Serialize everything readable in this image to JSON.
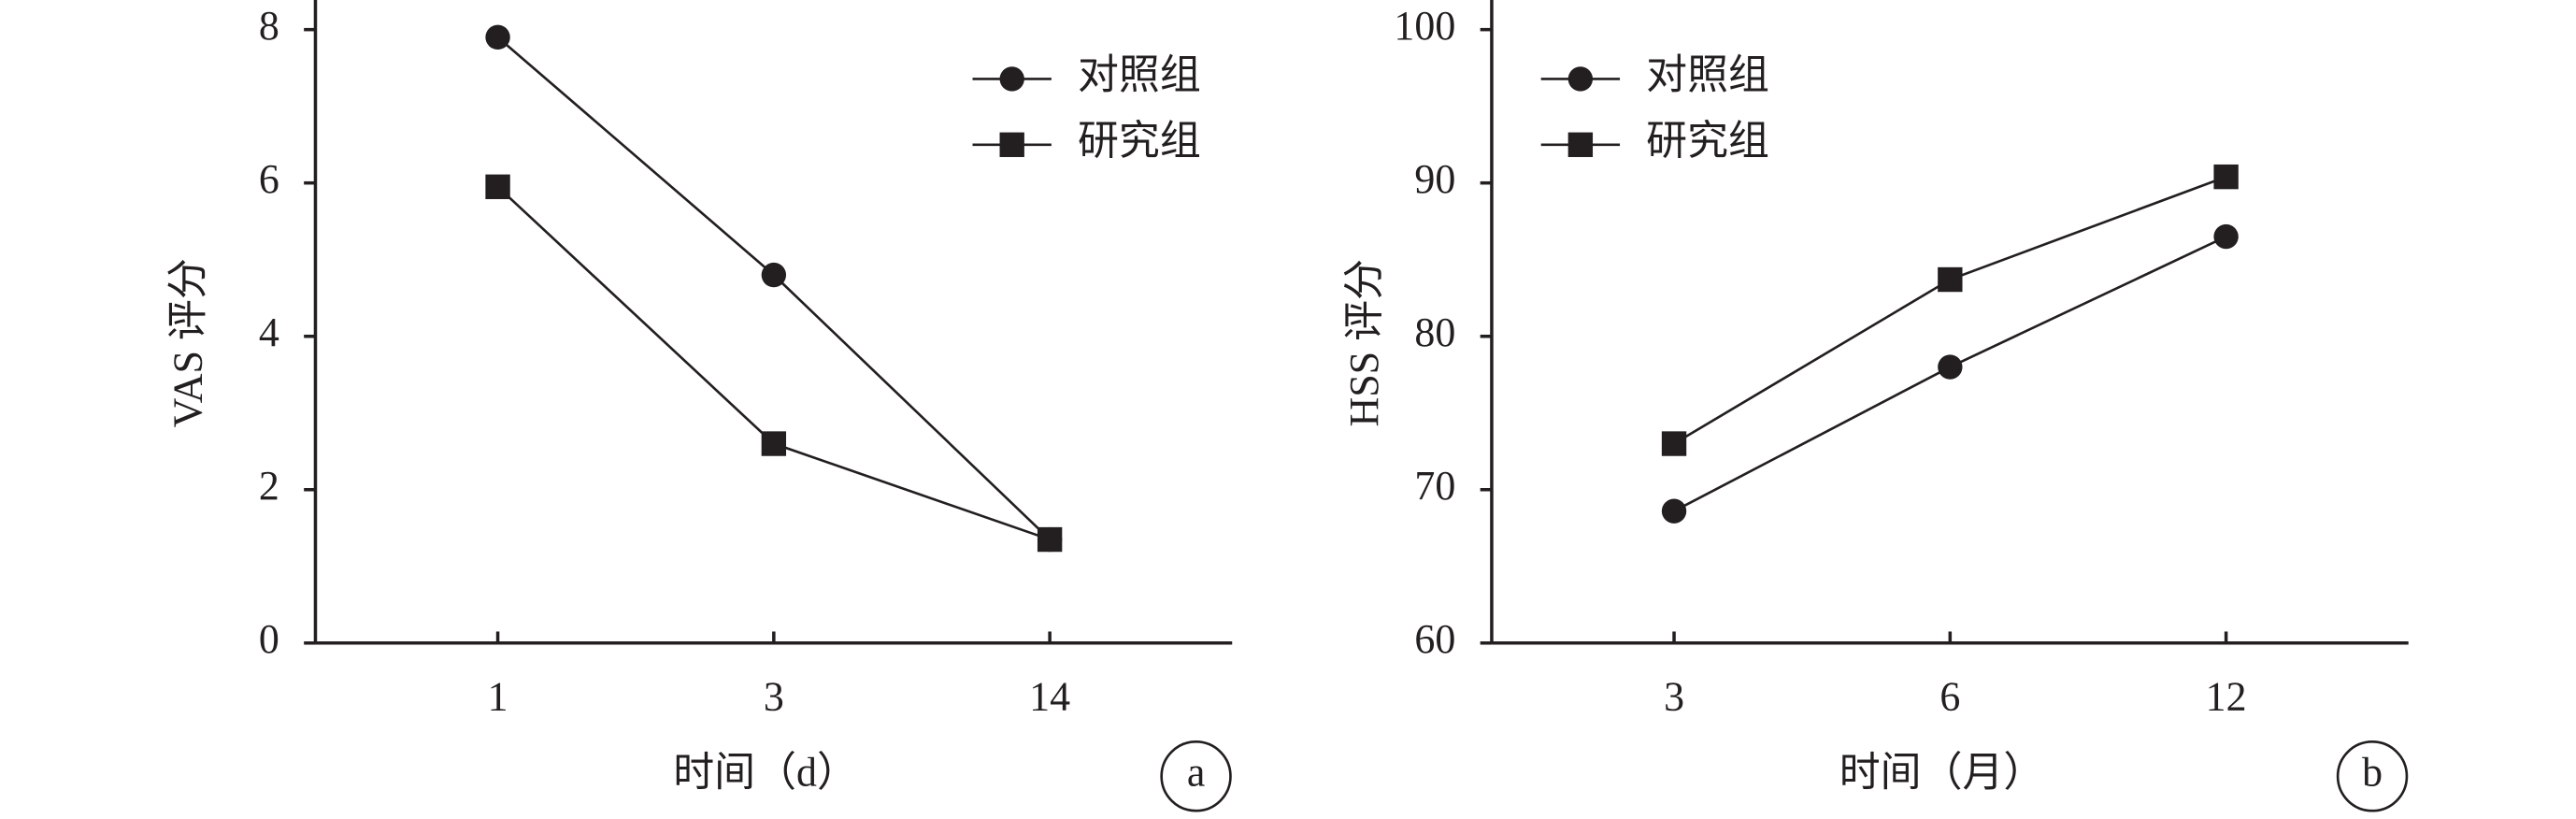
{
  "chart_data": [
    {
      "type": "line",
      "panel_label": "a",
      "y_label": "VAS 评分",
      "x_label": "时间（d）",
      "categories": [
        "1",
        "3",
        "14"
      ],
      "series": [
        {
          "name": "对照组",
          "color": "#231f20",
          "marker": "circle",
          "values": [
            7.9,
            4.8,
            1.35
          ]
        },
        {
          "name": "研究组",
          "color": "#231f20",
          "marker": "square",
          "values": [
            5.95,
            2.6,
            1.35
          ]
        }
      ],
      "ylim": [
        0,
        8
      ],
      "yticks": [
        0,
        2,
        4,
        6,
        8
      ],
      "legend": "upper right"
    },
    {
      "type": "line",
      "panel_label": "b",
      "y_label": "HSS 评分",
      "x_label": "时间（月）",
      "categories": [
        "3",
        "6",
        "12"
      ],
      "series": [
        {
          "name": "对照组",
          "color": "#231f20",
          "marker": "circle",
          "values": [
            68.6,
            78,
            86.5
          ]
        },
        {
          "name": "研究组",
          "color": "#231f20",
          "marker": "square",
          "values": [
            73,
            83.7,
            90.4
          ]
        }
      ],
      "ylim": [
        60,
        100
      ],
      "yticks": [
        60,
        70,
        80,
        90,
        100
      ],
      "legend": "upper left"
    }
  ]
}
